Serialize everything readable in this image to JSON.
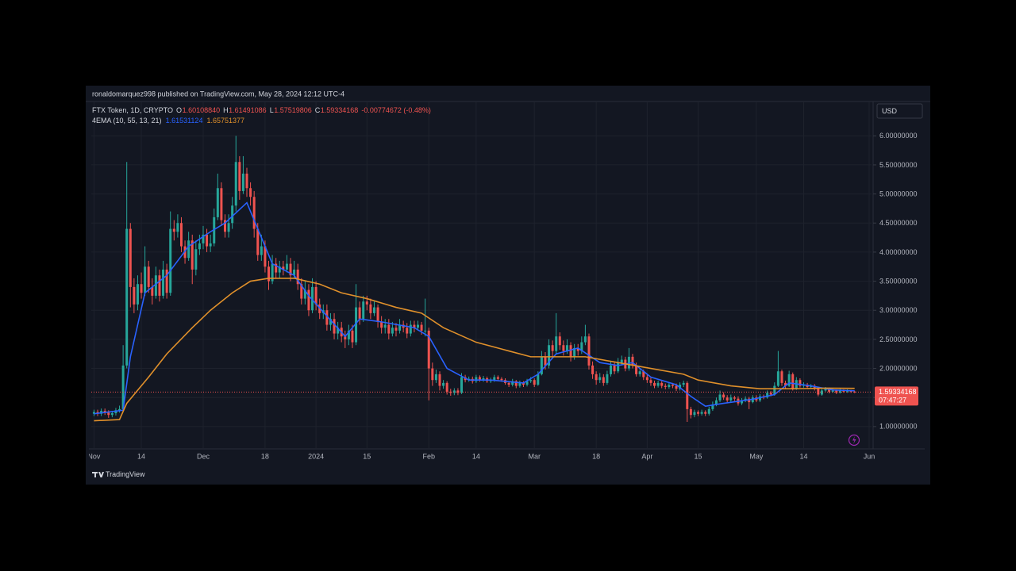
{
  "header": {
    "publisher_line": "ronaldomarquez998 published on TradingView.com, May 28, 2024 12:12 UTC-4"
  },
  "footer": {
    "brand": "TradingView"
  },
  "chart_data": {
    "type": "candlestick",
    "legend": {
      "symbol": "FTX Token, 1D, CRYPTO",
      "fields": [
        {
          "key": "O",
          "value": {
            "value": 1.6010884,
            "label": "1.60108840"
          }
        },
        {
          "key": "H",
          "value": 1.61491086
        },
        {
          "key": "L",
          "value": 1.57519806
        },
        {
          "key": "C",
          "value": 1.59334168
        }
      ],
      "change": "-0.00774672 (-0.48%)",
      "indicator": "4EMA (10, 55, 13, 21)",
      "indicator_values": [
        1.61531124,
        1.65751377
      ]
    },
    "currency": "USD",
    "countdown": "07:47:27",
    "up_color": "#26a69a",
    "down_color": "#ef5350",
    "grid": true,
    "open": [
      1.22,
      1.25,
      1.22,
      1.27,
      1.24,
      1.2,
      1.23,
      1.28,
      1.3,
      2.05,
      4.4,
      3.4,
      3.1,
      3.45,
      3.3,
      3.75,
      3.4,
      3.25,
      3.6,
      3.25,
      3.7,
      3.3,
      4.4,
      4.35,
      4.5,
      4.1,
      3.9,
      4.2,
      3.7,
      4.05,
      4.15,
      4.3,
      4.1,
      4.15,
      4.6,
      5.1,
      4.55,
      4.35,
      4.5,
      4.8,
      5.55,
      5.05,
      5.35,
      5.1,
      4.95,
      4.4,
      3.95,
      4.1,
      3.75,
      3.5,
      3.8,
      3.65,
      3.75,
      3.7,
      3.8,
      3.6,
      3.7,
      3.45,
      3.2,
      3.35,
      3.0,
      3.4,
      3.1,
      2.95,
      3.0,
      2.75,
      2.85,
      2.6,
      2.7,
      2.55,
      2.5,
      2.65,
      2.45,
      3.05,
      2.85,
      3.15,
      3.1,
      2.95,
      3.05,
      2.8,
      2.7,
      2.75,
      2.6,
      2.7,
      2.65,
      2.75,
      2.7,
      2.6,
      2.75,
      2.7,
      2.75,
      2.65,
      2.65,
      2.0,
      1.8,
      1.9,
      1.7,
      1.75,
      1.6,
      1.58,
      1.62,
      1.58,
      1.85,
      1.8,
      1.82,
      1.78,
      1.85,
      1.8,
      1.83,
      1.78,
      1.8,
      1.85,
      1.82,
      1.8,
      1.75,
      1.72,
      1.78,
      1.7,
      1.75,
      1.72,
      1.78,
      1.8,
      1.72,
      1.9,
      2.2,
      2.05,
      2.4,
      2.3,
      2.55,
      2.4,
      2.3,
      2.4,
      2.2,
      2.35,
      2.3,
      2.45,
      2.55,
      2.05,
      1.9,
      1.8,
      1.85,
      1.75,
      1.9,
      2.05,
      1.95,
      2.1,
      2.15,
      2.0,
      2.2,
      2.05,
      1.9,
      1.95,
      1.85,
      1.8,
      1.75,
      1.7,
      1.75,
      1.7,
      1.68,
      1.72,
      1.7,
      1.65,
      1.72,
      1.75,
      1.3,
      1.2,
      1.25,
      1.22,
      1.25,
      1.22,
      1.3,
      1.38,
      1.45,
      1.55,
      1.5,
      1.45,
      1.5,
      1.48,
      1.4,
      1.45,
      1.48,
      1.42,
      1.5,
      1.45,
      1.52,
      1.5,
      1.58,
      1.55,
      1.7,
      1.95,
      1.75,
      1.7,
      1.9,
      1.65,
      1.8,
      1.7,
      1.72,
      1.68,
      1.7,
      1.65,
      1.55,
      1.62,
      1.65,
      1.6,
      1.62,
      1.58,
      1.62,
      1.6,
      1.61,
      1.6010884
    ],
    "high": [
      1.29,
      1.29,
      1.31,
      1.31,
      1.28,
      1.27,
      1.32,
      1.36,
      2.4,
      5.55,
      4.5,
      3.55,
      3.6,
      3.65,
      4.1,
      3.85,
      3.55,
      3.75,
      3.7,
      3.85,
      3.8,
      4.7,
      4.55,
      4.65,
      4.6,
      4.2,
      4.35,
      4.3,
      4.2,
      4.3,
      4.45,
      4.4,
      4.3,
      4.75,
      5.35,
      5.2,
      4.65,
      4.65,
      4.95,
      6.0,
      5.65,
      5.65,
      5.45,
      5.2,
      5.05,
      4.5,
      4.3,
      4.2,
      3.85,
      3.95,
      3.9,
      3.85,
      3.85,
      3.95,
      3.9,
      3.85,
      3.8,
      3.55,
      3.5,
      3.45,
      3.55,
      3.5,
      3.2,
      3.1,
      3.1,
      2.95,
      2.95,
      2.8,
      2.8,
      2.65,
      2.75,
      2.75,
      3.45,
      3.15,
      3.25,
      3.25,
      3.2,
      3.15,
      3.1,
      2.9,
      2.85,
      2.85,
      2.8,
      2.78,
      2.85,
      2.82,
      2.78,
      2.82,
      2.82,
      2.82,
      2.8,
      3.2,
      2.7,
      2.1,
      1.98,
      1.95,
      1.8,
      1.78,
      1.65,
      1.66,
      1.66,
      1.92,
      1.89,
      1.86,
      1.86,
      1.89,
      1.88,
      1.87,
      1.86,
      1.84,
      1.89,
      1.88,
      1.85,
      1.83,
      1.78,
      1.82,
      1.8,
      1.79,
      1.78,
      1.82,
      1.85,
      1.83,
      1.95,
      2.3,
      2.28,
      2.5,
      2.48,
      2.95,
      2.62,
      2.48,
      2.5,
      2.45,
      2.42,
      2.42,
      2.55,
      2.75,
      2.6,
      2.12,
      1.95,
      1.92,
      1.9,
      1.96,
      2.12,
      2.1,
      2.18,
      2.22,
      2.2,
      2.35,
      2.25,
      2.1,
      2.0,
      1.98,
      1.9,
      1.84,
      1.79,
      1.79,
      1.78,
      1.74,
      1.76,
      1.75,
      1.74,
      1.76,
      1.79,
      1.78,
      1.34,
      1.29,
      1.28,
      1.29,
      1.28,
      1.34,
      1.43,
      1.5,
      1.62,
      1.59,
      1.54,
      1.55,
      1.53,
      1.52,
      1.49,
      1.52,
      1.51,
      1.54,
      1.54,
      1.56,
      1.55,
      1.62,
      1.61,
      1.76,
      2.3,
      1.98,
      1.79,
      1.96,
      1.93,
      1.85,
      1.83,
      1.76,
      1.75,
      1.73,
      1.73,
      1.68,
      1.65,
      1.68,
      1.67,
      1.65,
      1.64,
      1.65,
      1.64,
      1.64,
      1.63,
      1.61491086
    ],
    "low": [
      1.18,
      1.18,
      1.18,
      1.2,
      1.15,
      1.16,
      1.19,
      1.24,
      1.28,
      2.0,
      3.05,
      2.95,
      3.0,
      3.2,
      3.25,
      3.3,
      3.1,
      3.2,
      3.15,
      3.2,
      3.2,
      3.25,
      4.2,
      4.25,
      4.0,
      3.8,
      3.85,
      3.45,
      3.6,
      3.95,
      4.05,
      4.0,
      4.0,
      4.1,
      4.55,
      4.45,
      4.25,
      4.25,
      4.4,
      4.7,
      4.9,
      5.0,
      4.95,
      4.8,
      4.25,
      3.85,
      3.85,
      3.65,
      3.35,
      3.45,
      3.55,
      3.55,
      3.6,
      3.65,
      3.5,
      3.55,
      3.35,
      3.1,
      3.1,
      2.9,
      2.95,
      3.0,
      2.85,
      2.85,
      2.65,
      2.65,
      2.5,
      2.5,
      2.45,
      2.35,
      2.4,
      2.35,
      2.4,
      2.75,
      2.8,
      3.0,
      2.85,
      2.9,
      2.7,
      2.6,
      2.6,
      2.5,
      2.55,
      2.55,
      2.6,
      2.62,
      2.52,
      2.55,
      2.62,
      2.65,
      2.58,
      2.55,
      1.45,
      1.7,
      1.75,
      1.62,
      1.65,
      1.55,
      1.53,
      1.54,
      1.54,
      1.56,
      1.76,
      1.77,
      1.74,
      1.75,
      1.77,
      1.77,
      1.75,
      1.75,
      1.77,
      1.79,
      1.77,
      1.72,
      1.68,
      1.69,
      1.66,
      1.67,
      1.68,
      1.69,
      1.75,
      1.68,
      1.7,
      1.88,
      1.98,
      2.0,
      2.2,
      2.25,
      2.32,
      2.22,
      2.25,
      2.12,
      2.15,
      2.22,
      2.25,
      2.4,
      1.98,
      1.82,
      1.72,
      1.75,
      1.7,
      1.72,
      1.86,
      1.9,
      1.92,
      2.05,
      1.95,
      1.96,
      2.0,
      1.86,
      1.86,
      1.8,
      1.75,
      1.7,
      1.66,
      1.67,
      1.66,
      1.64,
      1.65,
      1.66,
      1.61,
      1.62,
      1.68,
      1.08,
      1.14,
      1.16,
      1.18,
      1.19,
      1.18,
      1.19,
      1.27,
      1.35,
      1.42,
      1.46,
      1.41,
      1.42,
      1.44,
      1.36,
      1.37,
      1.42,
      1.3,
      1.4,
      1.42,
      1.42,
      1.47,
      1.48,
      1.52,
      1.53,
      1.68,
      1.7,
      1.66,
      1.68,
      1.62,
      1.63,
      1.67,
      1.67,
      1.65,
      1.65,
      1.62,
      1.52,
      1.53,
      1.6,
      1.57,
      1.58,
      1.56,
      1.57,
      1.58,
      1.58,
      1.58,
      1.57519806
    ],
    "close": [
      1.25,
      1.22,
      1.27,
      1.24,
      1.2,
      1.23,
      1.28,
      1.3,
      2.05,
      4.4,
      3.4,
      3.1,
      3.45,
      3.3,
      3.75,
      3.4,
      3.25,
      3.6,
      3.25,
      3.7,
      3.3,
      4.4,
      4.35,
      4.5,
      4.1,
      3.9,
      4.2,
      3.7,
      4.05,
      4.15,
      4.3,
      4.1,
      4.15,
      4.6,
      5.1,
      4.55,
      4.35,
      4.5,
      4.8,
      5.55,
      5.05,
      5.35,
      5.1,
      4.95,
      4.4,
      3.95,
      4.1,
      3.75,
      3.5,
      3.8,
      3.65,
      3.75,
      3.7,
      3.8,
      3.6,
      3.7,
      3.45,
      3.2,
      3.35,
      3.0,
      3.4,
      3.1,
      2.95,
      3.0,
      2.75,
      2.85,
      2.6,
      2.7,
      2.55,
      2.5,
      2.65,
      2.45,
      3.05,
      2.85,
      3.15,
      3.1,
      2.95,
      3.05,
      2.8,
      2.7,
      2.75,
      2.6,
      2.7,
      2.65,
      2.75,
      2.7,
      2.6,
      2.75,
      2.7,
      2.75,
      2.65,
      2.65,
      2.0,
      1.8,
      1.9,
      1.7,
      1.75,
      1.6,
      1.58,
      1.62,
      1.58,
      1.85,
      1.8,
      1.82,
      1.78,
      1.85,
      1.8,
      1.83,
      1.78,
      1.8,
      1.85,
      1.82,
      1.8,
      1.75,
      1.72,
      1.78,
      1.7,
      1.75,
      1.72,
      1.78,
      1.8,
      1.72,
      1.9,
      2.2,
      2.05,
      2.4,
      2.3,
      2.55,
      2.4,
      2.3,
      2.4,
      2.2,
      2.35,
      2.3,
      2.45,
      2.55,
      2.05,
      1.9,
      1.8,
      1.85,
      1.75,
      1.9,
      2.05,
      1.95,
      2.1,
      2.15,
      2.0,
      2.2,
      2.05,
      1.9,
      1.95,
      1.85,
      1.8,
      1.75,
      1.7,
      1.75,
      1.7,
      1.68,
      1.72,
      1.7,
      1.65,
      1.72,
      1.75,
      1.3,
      1.2,
      1.25,
      1.22,
      1.25,
      1.22,
      1.3,
      1.38,
      1.45,
      1.55,
      1.5,
      1.45,
      1.5,
      1.48,
      1.4,
      1.45,
      1.48,
      1.42,
      1.5,
      1.45,
      1.52,
      1.5,
      1.58,
      1.55,
      1.7,
      1.95,
      1.75,
      1.7,
      1.9,
      1.65,
      1.8,
      1.7,
      1.72,
      1.68,
      1.7,
      1.65,
      1.55,
      1.62,
      1.65,
      1.6,
      1.62,
      1.58,
      1.62,
      1.6,
      1.61,
      1.6,
      1.59334168
    ],
    "series": [
      {
        "color": "#2962ff",
        "x": [
          0,
          8,
          10,
          14,
          20,
          26,
          32,
          36,
          42,
          45,
          49,
          55,
          59,
          64,
          69,
          73,
          79,
          88,
          92,
          97,
          103,
          109,
          118,
          122,
          127,
          133,
          139,
          144,
          148,
          153,
          160,
          164,
          168,
          173,
          181,
          187,
          191,
          197,
          203,
          209
        ],
        "values": [
          1.22,
          1.28,
          2.2,
          3.3,
          3.6,
          4.1,
          4.35,
          4.5,
          4.85,
          4.4,
          3.8,
          3.6,
          3.25,
          2.9,
          2.55,
          2.85,
          2.8,
          2.7,
          2.55,
          2.0,
          1.8,
          1.8,
          1.75,
          1.9,
          2.25,
          2.35,
          2.1,
          2.05,
          2.1,
          1.85,
          1.72,
          1.52,
          1.35,
          1.4,
          1.47,
          1.55,
          1.75,
          1.7,
          1.63,
          1.61531124
        ]
      },
      {
        "color": "#e0902b",
        "x": [
          0,
          7,
          9,
          15,
          20,
          27,
          32,
          38,
          43,
          48,
          55,
          62,
          68,
          75,
          83,
          90,
          96,
          105,
          114,
          120,
          127,
          135,
          144,
          153,
          162,
          166,
          175,
          183,
          192,
          201,
          209
        ],
        "values": [
          1.1,
          1.12,
          1.4,
          1.85,
          2.25,
          2.7,
          3.0,
          3.3,
          3.5,
          3.55,
          3.55,
          3.45,
          3.3,
          3.2,
          3.05,
          2.95,
          2.7,
          2.45,
          2.3,
          2.2,
          2.2,
          2.2,
          2.1,
          2.0,
          1.9,
          1.8,
          1.7,
          1.65,
          1.65,
          1.66,
          1.65751377
        ]
      }
    ],
    "xlim": [
      -0.75,
      213.65
    ],
    "xticks": [
      {
        "value": 0,
        "label": "Nov"
      },
      {
        "value": 13,
        "label": "14"
      },
      {
        "value": 30,
        "label": "Dec"
      },
      {
        "value": 47,
        "label": "18"
      },
      {
        "value": 61,
        "label": "2024"
      },
      {
        "value": 75,
        "label": "15"
      },
      {
        "value": 92,
        "label": "Feb"
      },
      {
        "value": 105,
        "label": "14"
      },
      {
        "value": 121,
        "label": "Mar"
      },
      {
        "value": 138,
        "label": "18"
      },
      {
        "value": 152,
        "label": "Apr"
      },
      {
        "value": 166,
        "label": "15"
      },
      {
        "value": 182,
        "label": "May"
      },
      {
        "value": 195,
        "label": "14"
      },
      {
        "value": 213,
        "label": "Jun"
      }
    ],
    "ylim": [
      0.63,
      6.59
    ],
    "yticks": [
      {
        "value": 1,
        "label": "1.00000000"
      },
      {
        "value": 1.5,
        "label": "1.50000000"
      },
      {
        "value": 2,
        "label": "2.00000000"
      },
      {
        "value": 2.5,
        "label": "2.50000000"
      },
      {
        "value": 3,
        "label": "3.00000000"
      },
      {
        "value": 3.5,
        "label": "3.50000000"
      },
      {
        "value": 4,
        "label": "4.00000000"
      },
      {
        "value": 4.5,
        "label": "4.50000000"
      },
      {
        "value": 5,
        "label": "5.00000000"
      },
      {
        "value": 5.5,
        "label": "5.50000000"
      },
      {
        "value": 6,
        "label": "6.00000000"
      }
    ]
  }
}
